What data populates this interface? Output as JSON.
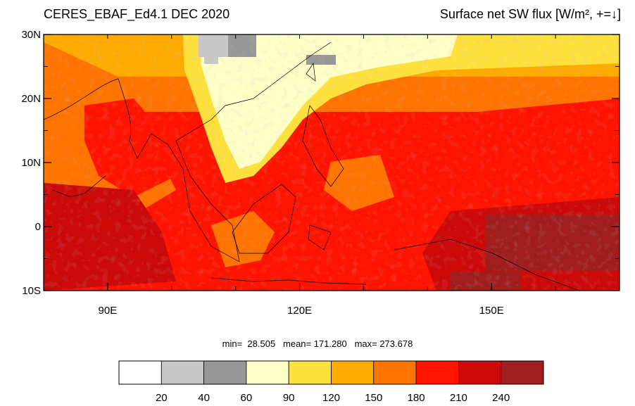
{
  "header": {
    "left_title": "CERES_EBAF_Ed4.1 DEC 2020",
    "right_title": "Surface net SW flux [W/m², +=↓]"
  },
  "stats_text": "min=  28.505   mean= 171.280   max= 273.678",
  "map": {
    "lon_range": [
      80,
      170
    ],
    "lat_range": [
      -10,
      30
    ],
    "lat_ticks": [
      {
        "value": 30,
        "label": "30N"
      },
      {
        "value": 20,
        "label": "20N"
      },
      {
        "value": 10,
        "label": "10N"
      },
      {
        "value": 0,
        "label": "0"
      },
      {
        "value": -10,
        "label": "10S"
      }
    ],
    "lon_ticks": [
      {
        "value": 90,
        "label": "90E"
      },
      {
        "value": 120,
        "label": "120E"
      },
      {
        "value": 150,
        "label": "150E"
      }
    ]
  },
  "colorbar": {
    "colors": [
      "#ffffff",
      "#c8c8c8",
      "#989898",
      "#ffffc8",
      "#ffe13d",
      "#ffaa00",
      "#ff7300",
      "#ff1400",
      "#cd0a0a",
      "#a01e1e"
    ],
    "labels": [
      "20",
      "40",
      "60",
      "90",
      "120",
      "150",
      "180",
      "210",
      "240"
    ]
  }
}
